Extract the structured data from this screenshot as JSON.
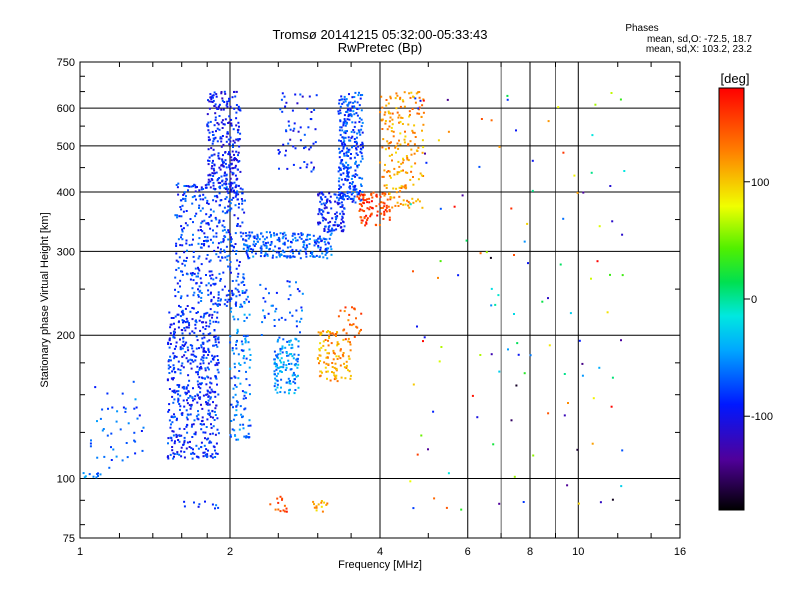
{
  "chart_data": {
    "type": "scatter",
    "title": "Tromsø 20141215 05:32:00-05:33:43",
    "subtitle": "RwPretec (Bp)",
    "xlabel": "Frequency [MHz]",
    "ylabel": "Stationary phase Virtual Height [km]",
    "x_scale": "log",
    "y_scale": "log",
    "xlim": [
      1,
      16
    ],
    "ylim": [
      75,
      750
    ],
    "x_ticks": [
      "1",
      "2",
      "4",
      "6",
      "8",
      "10",
      "16"
    ],
    "y_ticks": [
      "75",
      "100",
      "200",
      "300",
      "400",
      "500",
      "600",
      "750"
    ],
    "grid": true,
    "colorbar": {
      "label": "[deg]",
      "range": [
        -180,
        180
      ],
      "ticks": [
        "100",
        "0",
        "-100"
      ]
    },
    "stats": {
      "heading": "Phases",
      "line_o": "mean, sd,O: -72.5, 18.7",
      "line_x": "mean, sd,X: 103.2, 23.2"
    },
    "clusters": [
      {
        "name": "",
        "x": [
          1.0,
          1.1
        ],
        "y": [
          100,
          103
        ],
        "phase": -60,
        "n": 10
      },
      {
        "name": "",
        "x": [
          1.05,
          1.35
        ],
        "y": [
          105,
          160
        ],
        "phase": -70,
        "n": 45
      },
      {
        "name": "",
        "x": [
          1.5,
          1.9
        ],
        "y": [
          110,
          230
        ],
        "phase": -85,
        "n": 520
      },
      {
        "name": "",
        "x": [
          1.55,
          2.15
        ],
        "y": [
          230,
          420
        ],
        "phase": -80,
        "n": 420
      },
      {
        "name": "",
        "x": [
          1.8,
          2.1
        ],
        "y": [
          400,
          650
        ],
        "phase": -95,
        "n": 260
      },
      {
        "name": "",
        "x": [
          2.0,
          2.2
        ],
        "y": [
          120,
          250
        ],
        "phase": -60,
        "n": 120
      },
      {
        "name": "",
        "x": [
          2.15,
          3.2
        ],
        "y": [
          290,
          330
        ],
        "phase": -70,
        "n": 220
      },
      {
        "name": "",
        "x": [
          2.5,
          3.0
        ],
        "y": [
          440,
          650
        ],
        "phase": -90,
        "n": 60
      },
      {
        "name": "",
        "x": [
          2.45,
          2.75
        ],
        "y": [
          150,
          200
        ],
        "phase": -50,
        "n": 120
      },
      {
        "name": "",
        "x": [
          2.3,
          2.8
        ],
        "y": [
          200,
          260
        ],
        "phase": -70,
        "n": 40
      },
      {
        "name": "",
        "x": [
          3.0,
          3.5
        ],
        "y": [
          160,
          205
        ],
        "phase": 115,
        "n": 110
      },
      {
        "name": "",
        "x": [
          3.3,
          3.7
        ],
        "y": [
          190,
          230
        ],
        "phase": 135,
        "n": 25
      },
      {
        "name": "",
        "x": [
          3.0,
          3.4
        ],
        "y": [
          330,
          400
        ],
        "phase": -90,
        "n": 120
      },
      {
        "name": "",
        "x": [
          3.3,
          3.7
        ],
        "y": [
          380,
          650
        ],
        "phase": -75,
        "n": 280
      },
      {
        "name": "",
        "x": [
          3.6,
          4.2
        ],
        "y": [
          340,
          400
        ],
        "phase": 155,
        "n": 90
      },
      {
        "name": "",
        "x": [
          4.0,
          4.9
        ],
        "y": [
          370,
          650
        ],
        "phase": 115,
        "n": 200
      },
      {
        "name": "",
        "x": [
          2.4,
          2.6
        ],
        "y": [
          85,
          92
        ],
        "phase": 150,
        "n": 14
      },
      {
        "name": "",
        "x": [
          2.9,
          3.15
        ],
        "y": [
          85,
          90
        ],
        "phase": 110,
        "n": 14
      },
      {
        "name": "",
        "x": [
          1.6,
          1.9
        ],
        "y": [
          86,
          90
        ],
        "phase": -80,
        "n": 10
      },
      {
        "name": "",
        "x": [
          4.6,
          12.5
        ],
        "y": [
          85,
          650
        ],
        "phase": 0,
        "n": 120,
        "random_phase": true
      }
    ]
  }
}
